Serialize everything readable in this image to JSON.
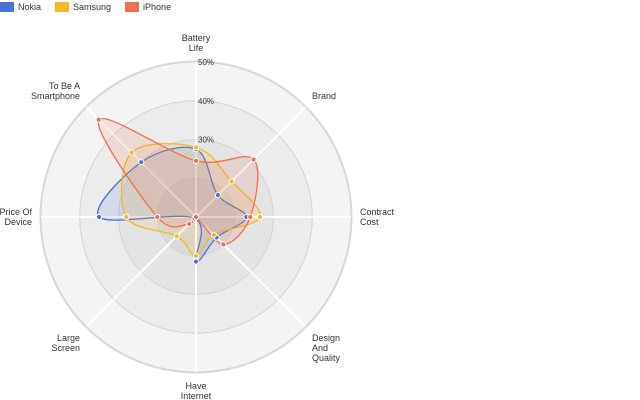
{
  "chart_data": {
    "type": "radar",
    "categories": [
      [
        "Battery",
        "Life"
      ],
      [
        "Brand"
      ],
      [
        "Contract",
        "Cost"
      ],
      [
        "Design",
        "And",
        "Quality"
      ],
      [
        "Have",
        "Internet"
      ],
      [
        "Large",
        "Screen"
      ],
      [
        "Price Of",
        "Device"
      ],
      [
        "To Be A",
        "Smartphone"
      ]
    ],
    "r_ticks": [
      {
        "value": 30,
        "label": "30%"
      },
      {
        "value": 40,
        "label": "40%"
      },
      {
        "value": 50,
        "label": "50%"
      }
    ],
    "r_range": [
      10,
      50
    ],
    "series": [
      {
        "name": "Nokia",
        "color": "#4c6fd6",
        "values": [
          27.5,
          18.0,
          23.0,
          17.5,
          21.5,
          10.5,
          35.0,
          30.0
        ]
      },
      {
        "name": "Samsung",
        "color": "#f2b829",
        "values": [
          28.0,
          23.0,
          26.5,
          16.5,
          20.0,
          17.0,
          28.0,
          33.5
        ]
      },
      {
        "name": "iPhone",
        "color": "#f26d56",
        "values": [
          24.5,
          31.0,
          24.0,
          20.0,
          10.0,
          12.5,
          20.0,
          45.5
        ]
      }
    ],
    "legend_position": "top-left",
    "grid": true
  }
}
